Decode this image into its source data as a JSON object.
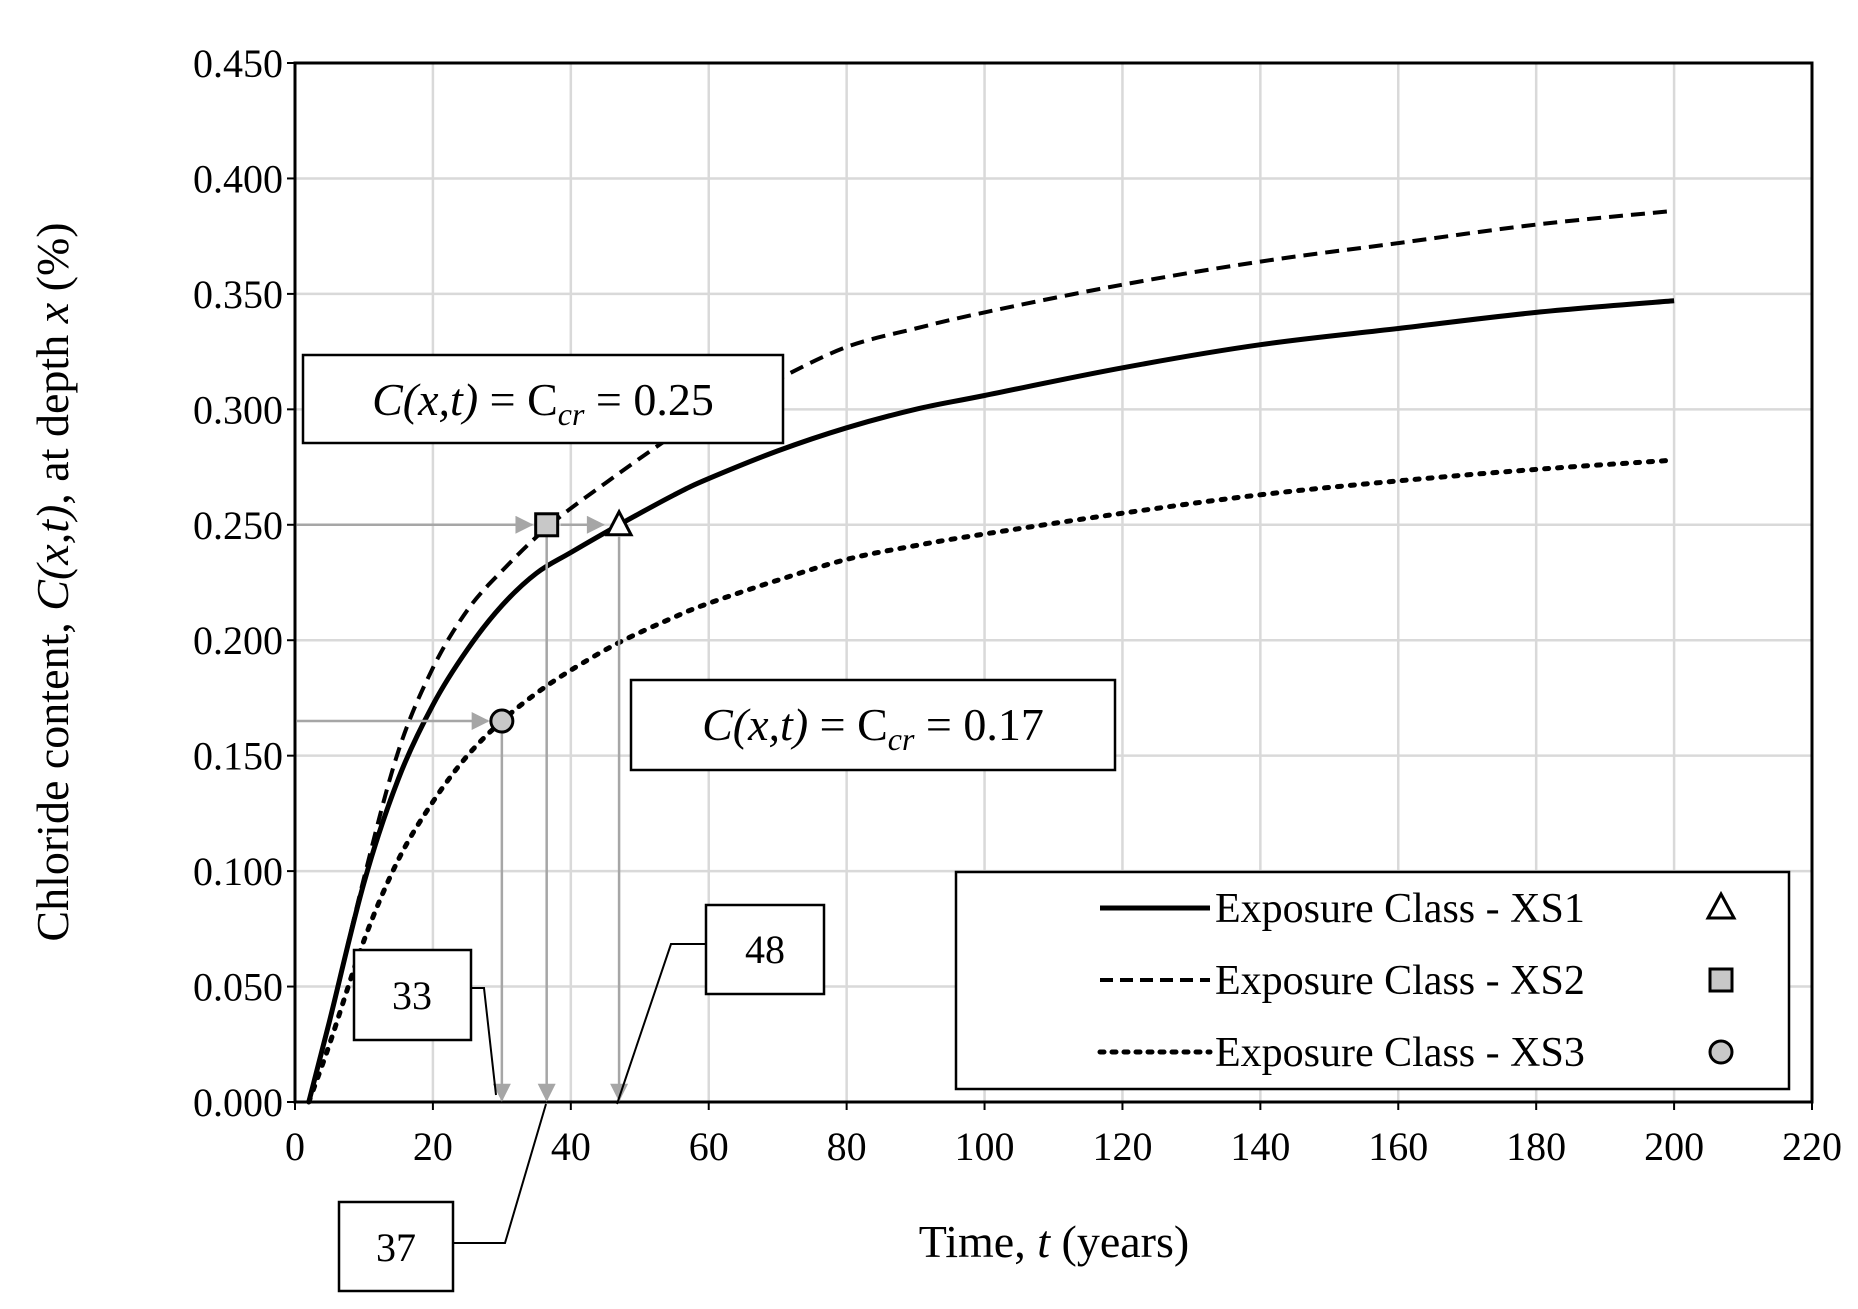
{
  "chart_data": {
    "type": "line",
    "xlabel": {
      "prefix": "Time, ",
      "var": "t",
      "suffix": " (years)"
    },
    "ylabel": {
      "p1": "Chloride content, ",
      "v1": "C(x,t)",
      "p2": ", at depth ",
      "v2": "x",
      "p3": " (%)"
    },
    "xlim": [
      0,
      220
    ],
    "ylim": [
      0,
      0.45
    ],
    "xticks": [
      "0",
      "20",
      "40",
      "60",
      "80",
      "100",
      "120",
      "140",
      "160",
      "180",
      "200",
      "220"
    ],
    "yticks": [
      "0.000",
      "0.050",
      "0.100",
      "0.150",
      "0.200",
      "0.250",
      "0.300",
      "0.350",
      "0.400",
      "0.450"
    ],
    "grid": true,
    "legend_position": "bottom-right",
    "series": [
      {
        "name": "Exposure Class - XS1",
        "style": "solid",
        "marker": "triangle",
        "x": [
          2,
          5,
          10,
          15,
          20,
          25,
          30,
          35,
          40,
          47,
          55,
          60,
          70,
          80,
          90,
          100,
          120,
          140,
          160,
          180,
          200
        ],
        "y": [
          0.0,
          0.035,
          0.095,
          0.14,
          0.172,
          0.196,
          0.215,
          0.229,
          0.238,
          0.25,
          0.263,
          0.27,
          0.282,
          0.292,
          0.3,
          0.306,
          0.318,
          0.328,
          0.335,
          0.342,
          0.347
        ]
      },
      {
        "name": "Exposure Class - XS2",
        "style": "dashed",
        "marker": "square",
        "x": [
          2,
          5,
          10,
          15,
          20,
          25,
          30,
          37,
          45,
          55,
          60,
          70,
          80,
          90,
          100,
          120,
          140,
          160,
          180,
          200
        ],
        "y": [
          0.0,
          0.035,
          0.097,
          0.152,
          0.188,
          0.213,
          0.23,
          0.25,
          0.268,
          0.289,
          0.297,
          0.313,
          0.327,
          0.335,
          0.342,
          0.354,
          0.364,
          0.372,
          0.38,
          0.386
        ]
      },
      {
        "name": "Exposure Class - XS3",
        "style": "dotted",
        "marker": "circle",
        "x": [
          2,
          5,
          10,
          15,
          20,
          25,
          30,
          35,
          40,
          47,
          55,
          60,
          70,
          80,
          90,
          100,
          120,
          140,
          160,
          180,
          200
        ],
        "y": [
          0.0,
          0.025,
          0.07,
          0.105,
          0.13,
          0.15,
          0.165,
          0.177,
          0.187,
          0.199,
          0.21,
          0.216,
          0.226,
          0.235,
          0.241,
          0.246,
          0.255,
          0.263,
          0.269,
          0.274,
          0.278
        ]
      }
    ],
    "markers": [
      {
        "series": 0,
        "x": 47,
        "y": 0.25
      },
      {
        "series": 1,
        "x": 36.5,
        "y": 0.25
      },
      {
        "series": 2,
        "x": 30,
        "y": 0.165
      }
    ],
    "annotations": {
      "label_025": {
        "c": "C",
        "xt": "(x,t)",
        "eq1": " = C",
        "sub": "cr",
        "eq2": " = 0.25"
      },
      "label_017": {
        "c": "C",
        "xt": "(x,t)",
        "eq1": " = C",
        "sub": "cr",
        "eq2": " = 0.17"
      },
      "callouts": [
        "33",
        "37",
        "48"
      ]
    }
  }
}
